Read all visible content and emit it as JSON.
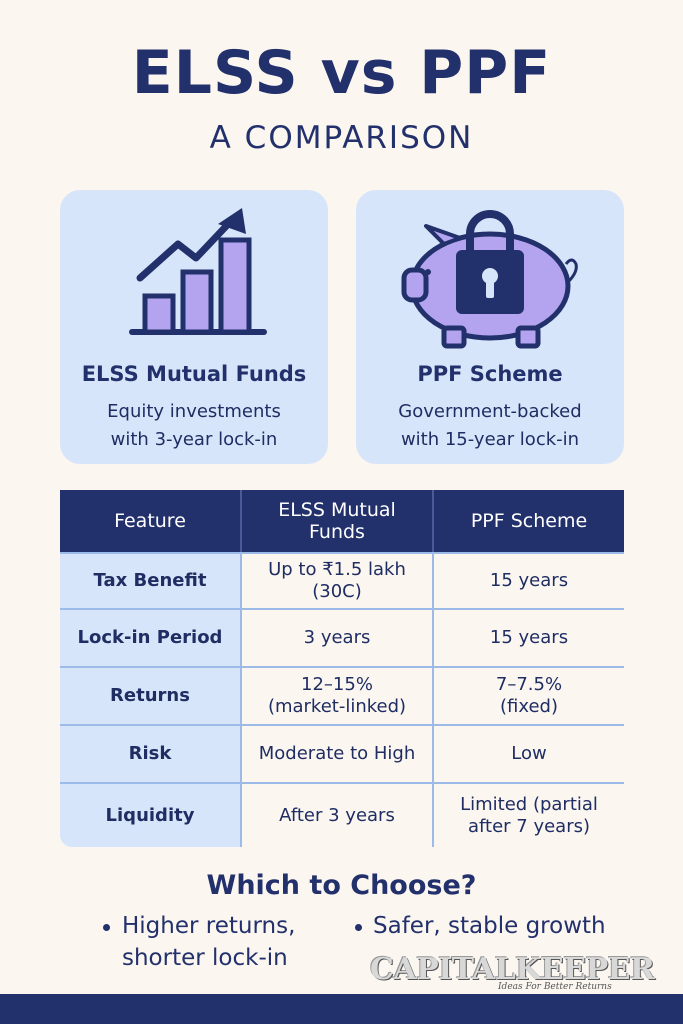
{
  "header": {
    "title": "ELSS vs PPF",
    "subtitle": "A COMPARISON"
  },
  "cards": [
    {
      "icon": "bar-chart-arrow-icon",
      "title": "ELSS Mutual Funds",
      "desc": "Equity investments\nwith 3-year lock-in"
    },
    {
      "icon": "piggy-bank-lock-icon",
      "title": "PPF Scheme",
      "desc": "Government-backed\nwith 15-year lock-in"
    }
  ],
  "table": {
    "headers": [
      "Feature",
      "ELSS Mutual\nFunds",
      "PPF Scheme"
    ],
    "rows": [
      [
        "Tax Benefit",
        "Up to ₹1.5 lakh\n(30C)",
        "15 years"
      ],
      [
        "Lock-in Period",
        "3 years",
        "15 years"
      ],
      [
        "Returns",
        "12–15%\n(market-linked)",
        "7–7.5%\n(fixed)"
      ],
      [
        "Risk",
        "Moderate to High",
        "Low"
      ],
      [
        "Liquidity",
        "After 3 years",
        "Limited (partial\nafter 7 years)"
      ]
    ]
  },
  "choose": {
    "title": "Which to Choose?",
    "left": "Higher returns,\nshorter lock-in",
    "right": "Safer, stable growth"
  },
  "logo": {
    "name": "CAPITALKEEPER",
    "tagline": "Ideas For Better Returns"
  },
  "colors": {
    "navy": "#22306b",
    "card": "#d7e5fa",
    "lavender": "#b4a4f0",
    "background": "#fbf6f0"
  }
}
